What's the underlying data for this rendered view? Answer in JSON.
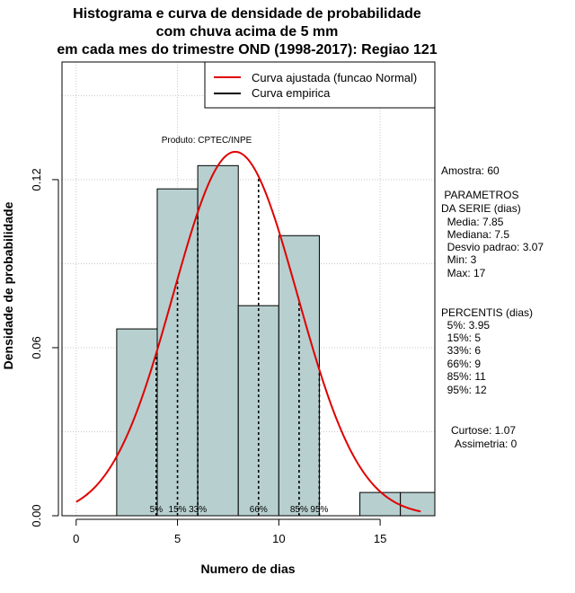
{
  "chart_data": {
    "type": "bar",
    "title_lines": [
      "Histograma e curva de densidade de probabilidade",
      "com chuva acima de 5 mm",
      "em cada mes do trimestre OND (1998-2017): Regiao 121"
    ],
    "xlabel": "Numero de dias",
    "ylabel": "Densidade de probabilidade",
    "xlim": [
      -0.7,
      17.7
    ],
    "ylim": [
      0,
      0.162
    ],
    "x_ticks": [
      0,
      5,
      10,
      15
    ],
    "y_ticks": [
      0.0,
      0.06,
      0.12
    ],
    "y_tick_labels": [
      "0.00",
      "0.06",
      "0.12"
    ],
    "grid": true,
    "bins": [
      {
        "x0": 2,
        "x1": 4,
        "density": 0.0667
      },
      {
        "x0": 4,
        "x1": 6,
        "density": 0.1167
      },
      {
        "x0": 6,
        "x1": 8,
        "density": 0.125
      },
      {
        "x0": 8,
        "x1": 10,
        "density": 0.075
      },
      {
        "x0": 10,
        "x1": 12,
        "density": 0.1
      },
      {
        "x0": 12,
        "x1": 14,
        "density": 0.0
      },
      {
        "x0": 14,
        "x1": 16,
        "density": 0.0083
      },
      {
        "x0": 16,
        "x1": 18,
        "density": 0.0083
      }
    ],
    "normal_fit": {
      "mean": 7.85,
      "sd": 3.07,
      "x_from": 0,
      "x_to": 17
    },
    "percentile_lines": [
      {
        "x": 3.95,
        "label": "5%"
      },
      {
        "x": 5,
        "label": "15%"
      },
      {
        "x": 6,
        "label": "33%"
      },
      {
        "x": 9,
        "label": "66%"
      },
      {
        "x": 11,
        "label": "85%"
      },
      {
        "x": 12,
        "label": "95%"
      }
    ],
    "legend": {
      "position": "top-right",
      "entries": [
        {
          "label": "Curva ajustada (funcao Normal)",
          "color": "#e00000"
        },
        {
          "label": "Curva empirica",
          "color": "#000000"
        }
      ]
    },
    "credit": "Produto: CPTEC/INPE",
    "colors": {
      "bar_fill": "#b7cfcf",
      "bar_stroke": "#000000",
      "curve": "#e00000",
      "grid": "#c8c8c8"
    }
  },
  "side_panel": [
    "Amostra: 60",
    " PARAMETROS",
    "DA SERIE (dias)",
    "  Media: 7.85",
    "  Mediana: 7.5",
    "  Desvio padrao: 3.07",
    "  Min: 3",
    "  Max: 17",
    "PERCENTIS (dias)",
    "  5%: 3.95",
    "  15%: 5",
    "  33%: 6",
    "  66%: 9",
    "  85%: 11",
    "  95%: 12",
    "Curtose: 1.07",
    "  Assimetria: 0"
  ]
}
